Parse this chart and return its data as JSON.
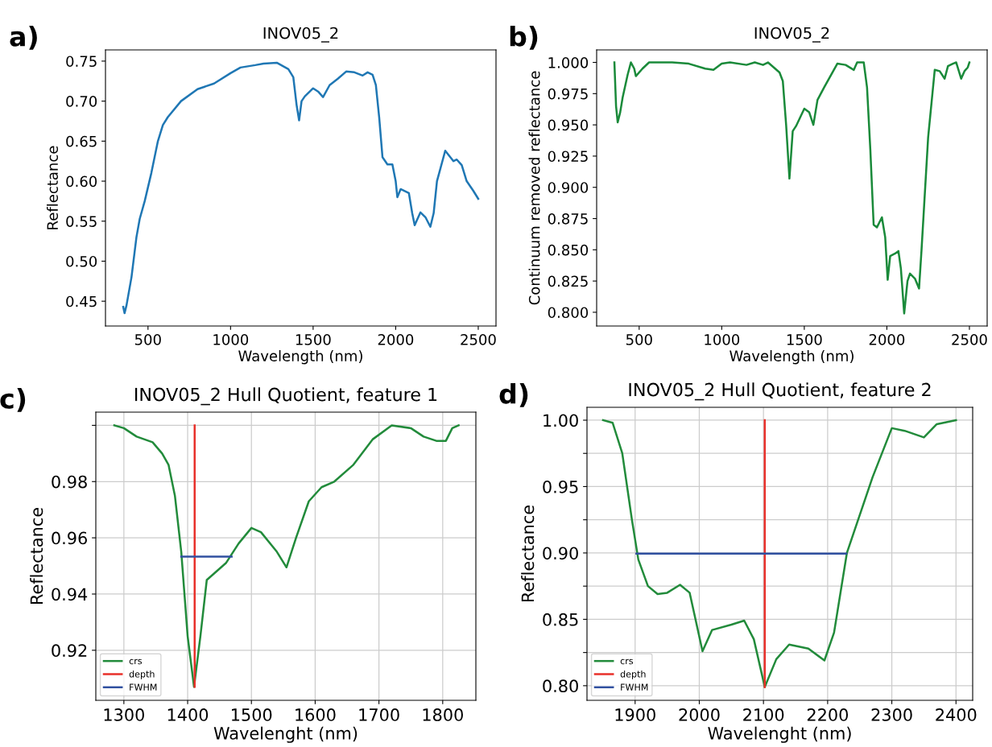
{
  "chart_data": [
    {
      "type": "line",
      "title": "INOV05_2",
      "xlabel": "Wavelength (nm)",
      "ylabel": "Reflectance",
      "annotations": [
        "a)"
      ],
      "xlim": [
        242.5,
        2607.5
      ],
      "xticks": [
        500,
        1000,
        1500,
        2000,
        2500
      ],
      "ylim": [
        0.419,
        0.764
      ],
      "yticks": [
        0.45,
        {
          "value": 0.5,
          "label": "0.50"
        },
        0.55,
        {
          "value": 0.6,
          "label": "0.60"
        },
        0.65,
        {
          "value": 0.7,
          "label": "0.70"
        },
        0.75
      ],
      "grid": false,
      "legend": false,
      "series": [
        {
          "color": "#1f77b4",
          "x": [
            350,
            358,
            370,
            400,
            430,
            450,
            480,
            520,
            560,
            590,
            620,
            700,
            800,
            900,
            1000,
            1060,
            1150,
            1200,
            1280,
            1350,
            1380,
            1400,
            1415,
            1430,
            1450,
            1480,
            1500,
            1530,
            1560,
            1600,
            1650,
            1700,
            1750,
            1800,
            1830,
            1860,
            1880,
            1900,
            1920,
            1950,
            1980,
            2000,
            2010,
            2030,
            2080,
            2100,
            2115,
            2150,
            2180,
            2210,
            2230,
            2250,
            2300,
            2350,
            2370,
            2400,
            2430,
            2470,
            2500
          ],
          "values": [
            0.443,
            0.435,
            0.445,
            0.48,
            0.53,
            0.553,
            0.575,
            0.61,
            0.65,
            0.67,
            0.68,
            0.7,
            0.715,
            0.722,
            0.735,
            0.742,
            0.745,
            0.747,
            0.748,
            0.74,
            0.73,
            0.695,
            0.676,
            0.7,
            0.706,
            0.712,
            0.716,
            0.712,
            0.705,
            0.72,
            0.728,
            0.737,
            0.736,
            0.732,
            0.736,
            0.733,
            0.72,
            0.68,
            0.63,
            0.621,
            0.621,
            0.6,
            0.58,
            0.59,
            0.585,
            0.56,
            0.545,
            0.561,
            0.555,
            0.543,
            0.56,
            0.6,
            0.638,
            0.625,
            0.627,
            0.62,
            0.6,
            0.588,
            0.578
          ]
        }
      ]
    },
    {
      "type": "line",
      "title": "INOV05_2",
      "xlabel": "Wavelength (nm)",
      "ylabel": "Continuum removed reflectance",
      "annotations": [
        "b)"
      ],
      "xlim": [
        242.5,
        2607.5
      ],
      "xticks": [
        500,
        1000,
        1500,
        2000,
        2500
      ],
      "ylim": [
        0.789,
        1.01
      ],
      "yticks": [
        {
          "value": 0.8,
          "label": "0.800"
        },
        {
          "value": 0.825,
          "label": "0.825"
        },
        {
          "value": 0.85,
          "label": "0.850"
        },
        {
          "value": 0.875,
          "label": "0.875"
        },
        {
          "value": 0.9,
          "label": "0.900"
        },
        {
          "value": 0.925,
          "label": "0.925"
        },
        {
          "value": 0.95,
          "label": "0.950"
        },
        {
          "value": 0.975,
          "label": "0.975"
        },
        {
          "value": 1.0,
          "label": "1.000"
        }
      ],
      "grid": false,
      "legend": false,
      "series": [
        {
          "color": "#1a8a3a",
          "x": [
            350,
            360,
            370,
            385,
            400,
            430,
            450,
            470,
            480,
            520,
            560,
            700,
            800,
            900,
            950,
            1000,
            1050,
            1150,
            1200,
            1250,
            1280,
            1350,
            1370,
            1390,
            1410,
            1430,
            1450,
            1500,
            1530,
            1555,
            1580,
            1620,
            1700,
            1750,
            1800,
            1820,
            1860,
            1880,
            1900,
            1920,
            1940,
            1970,
            1990,
            2005,
            2020,
            2050,
            2070,
            2085,
            2105,
            2125,
            2140,
            2170,
            2195,
            2210,
            2250,
            2290,
            2320,
            2350,
            2370,
            2400,
            2420,
            2450,
            2470,
            2490,
            2500
          ],
          "values": [
            1.0,
            0.965,
            0.952,
            0.96,
            0.972,
            0.99,
            1.0,
            0.995,
            0.989,
            0.995,
            1.0,
            1.0,
            0.999,
            0.995,
            0.994,
            0.999,
            1.0,
            0.998,
            1.0,
            0.998,
            1.0,
            0.992,
            0.985,
            0.95,
            0.907,
            0.945,
            0.949,
            0.963,
            0.96,
            0.95,
            0.97,
            0.98,
            0.999,
            0.998,
            0.994,
            1.0,
            1.0,
            0.98,
            0.93,
            0.87,
            0.868,
            0.876,
            0.86,
            0.826,
            0.845,
            0.847,
            0.849,
            0.835,
            0.799,
            0.825,
            0.831,
            0.827,
            0.819,
            0.85,
            0.94,
            0.994,
            0.993,
            0.987,
            0.997,
            0.999,
            1.0,
            0.987,
            0.993,
            0.996,
            1.0
          ]
        }
      ]
    },
    {
      "type": "line",
      "title": "INOV05_2 Hull Quotient, feature 1",
      "xlabel": "Wavelenght (nm)",
      "ylabel": "Reflectance",
      "annotations": [
        "c)"
      ],
      "xlim": [
        1256,
        1852
      ],
      "xticks": [
        1300,
        1400,
        1500,
        1600,
        1700,
        1800
      ],
      "ylim": [
        0.9022,
        1.0047
      ],
      "yticks": [
        0.92,
        0.94,
        0.96,
        0.98,
        {
          "value": 1.0,
          "label": null
        }
      ],
      "grid": true,
      "legend": "bottom left",
      "series": [
        {
          "name": "crs",
          "color": "#228b3b",
          "x": [
            1285,
            1300,
            1320,
            1345,
            1360,
            1370,
            1380,
            1390,
            1400,
            1410,
            1420,
            1430,
            1445,
            1460,
            1480,
            1500,
            1515,
            1540,
            1555,
            1570,
            1590,
            1610,
            1630,
            1660,
            1690,
            1720,
            1750,
            1770,
            1790,
            1805,
            1815,
            1825
          ],
          "values": [
            1.0,
            0.999,
            0.996,
            0.994,
            0.99,
            0.986,
            0.975,
            0.955,
            0.925,
            0.907,
            0.925,
            0.945,
            0.948,
            0.951,
            0.958,
            0.9635,
            0.962,
            0.955,
            0.9495,
            0.96,
            0.973,
            0.978,
            0.98,
            0.986,
            0.995,
            1.0,
            0.999,
            0.996,
            0.9945,
            0.9945,
            0.999,
            1.0
          ]
        },
        {
          "name": "depth",
          "color": "#e8302a",
          "x": [
            1411,
            1411
          ],
          "values": [
            0.907,
            1.0
          ]
        },
        {
          "name": "FWHM",
          "color": "#3050a0",
          "x": [
            1390,
            1469
          ],
          "values": [
            0.9533,
            0.9533
          ]
        }
      ]
    },
    {
      "type": "line",
      "title": "INOV05_2 Hull Quotient, feature 2",
      "xlabel": "Wavelenght (nm)",
      "ylabel": "Reflectance",
      "annotations": [
        "d)"
      ],
      "xlim": [
        1825,
        2426
      ],
      "xticks": [
        1900,
        2000,
        2100,
        2200,
        2300,
        2400
      ],
      "ylim": [
        0.789,
        1.0097
      ],
      "yticks": [
        {
          "value": 0.8,
          "label": "0.80"
        },
        {
          "value": 0.825,
          "label": null
        },
        {
          "value": 0.85,
          "label": "0.85"
        },
        {
          "value": 0.875,
          "label": null
        },
        {
          "value": 0.9,
          "label": "0.90"
        },
        {
          "value": 0.925,
          "label": null
        },
        {
          "value": 0.95,
          "label": "0.95"
        },
        {
          "value": 0.975,
          "label": null
        },
        {
          "value": 1.0,
          "label": "1.00"
        }
      ],
      "grid": true,
      "legend": "bottom left",
      "series": [
        {
          "name": "crs",
          "color": "#228b3b",
          "x": [
            1850,
            1865,
            1880,
            1895,
            1905,
            1920,
            1935,
            1950,
            1970,
            1985,
            2005,
            2020,
            2050,
            2070,
            2085,
            2102,
            2120,
            2140,
            2170,
            2195,
            2210,
            2230,
            2270,
            2300,
            2320,
            2350,
            2370,
            2400
          ],
          "values": [
            1.0,
            0.998,
            0.975,
            0.925,
            0.895,
            0.875,
            0.869,
            0.87,
            0.876,
            0.87,
            0.826,
            0.842,
            0.846,
            0.849,
            0.835,
            0.799,
            0.82,
            0.831,
            0.828,
            0.819,
            0.84,
            0.9,
            0.957,
            0.994,
            0.992,
            0.987,
            0.997,
            1.0
          ]
        },
        {
          "name": "depth",
          "color": "#e8302a",
          "x": [
            2102,
            2102
          ],
          "values": [
            0.799,
            1.0
          ]
        },
        {
          "name": "FWHM",
          "color": "#3050a0",
          "x": [
            1902,
            2229
          ],
          "values": [
            0.8995,
            0.8995
          ]
        }
      ]
    }
  ]
}
